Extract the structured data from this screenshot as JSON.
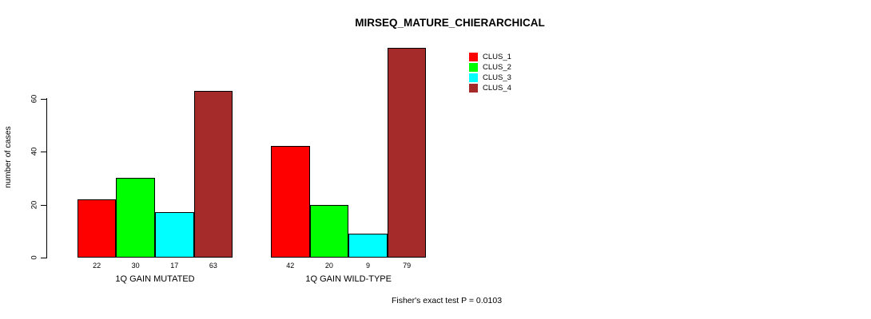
{
  "title": "MIRSEQ_MATURE_CHIERARCHICAL",
  "footer_note": "Fisher's exact test P = 0.0103",
  "chart_data": {
    "type": "bar",
    "title": "MIRSEQ_MATURE_CHIERARCHICAL",
    "ylabel": "number of cases",
    "xlabel": "",
    "categories": [
      "1Q GAIN MUTATED",
      "1Q GAIN WILD-TYPE"
    ],
    "series": [
      {
        "name": "CLUS_1",
        "color": "#FF0000",
        "values": [
          22,
          42
        ]
      },
      {
        "name": "CLUS_2",
        "color": "#00FF00",
        "values": [
          30,
          20
        ]
      },
      {
        "name": "CLUS_3",
        "color": "#00FFFF",
        "values": [
          17,
          9
        ]
      },
      {
        "name": "CLUS_4",
        "color": "#A52A2A",
        "values": [
          63,
          79
        ]
      }
    ],
    "bar_value_labels": [
      [
        22,
        30,
        17,
        63
      ],
      [
        42,
        20,
        9,
        79
      ]
    ],
    "yticks": [
      0,
      20,
      40,
      60
    ],
    "ylim": [
      0,
      79
    ],
    "grid": false,
    "legend_position": "top-right",
    "legend_entries": [
      "CLUS_1",
      "CLUS_2",
      "CLUS_3",
      "CLUS_4"
    ],
    "annotation": "Fisher's exact test P = 0.0103"
  }
}
